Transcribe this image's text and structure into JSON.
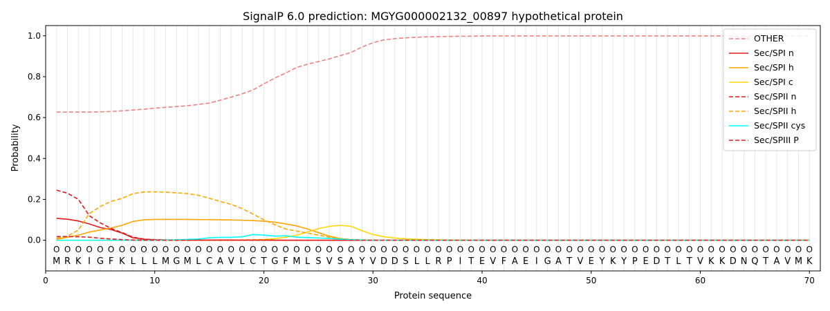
{
  "chart_data": {
    "type": "line",
    "title": "SignalP 6.0 prediction: MGYG000002132_00897 hypothetical protein",
    "xlabel": "Protein sequence",
    "ylabel": "Probability",
    "xlim": [
      0,
      71
    ],
    "ylim": [
      -0.15,
      1.05
    ],
    "x_ticks": [
      0,
      10,
      20,
      30,
      40,
      50,
      60,
      70
    ],
    "y_ticks": [
      0.0,
      0.2,
      0.4,
      0.6,
      0.8,
      1.0
    ],
    "x_tick_labels": [
      "0",
      "10",
      "20",
      "30",
      "40",
      "50",
      "60",
      "70"
    ],
    "y_tick_labels": [
      "0.0",
      "0.2",
      "0.4",
      "0.6",
      "0.8",
      "1.0"
    ],
    "grid": "vertical lines at each residue",
    "legend_position": "top-right",
    "sequence": [
      "M",
      "R",
      "K",
      "I",
      "G",
      "F",
      "K",
      "L",
      "L",
      "L",
      "M",
      "G",
      "M",
      "L",
      "C",
      "A",
      "V",
      "L",
      "C",
      "T",
      "G",
      "F",
      "M",
      "L",
      "S",
      "V",
      "S",
      "A",
      "Y",
      "V",
      "D",
      "D",
      "S",
      "L",
      "L",
      "R",
      "P",
      "I",
      "T",
      "E",
      "V",
      "F",
      "A",
      "E",
      "I",
      "G",
      "A",
      "T",
      "V",
      "E",
      "Y",
      "K",
      "Y",
      "P",
      "E",
      "D",
      "T",
      "L",
      "T",
      "V",
      "K",
      "K",
      "D",
      "N",
      "Q",
      "T",
      "A",
      "V",
      "M",
      "K"
    ],
    "region_marker_label": "O",
    "series": [
      {
        "name": "OTHER",
        "color": "#f08080",
        "dash": "dashed",
        "values": [
          0.627,
          0.627,
          0.627,
          0.627,
          0.628,
          0.63,
          0.633,
          0.637,
          0.641,
          0.646,
          0.65,
          0.654,
          0.658,
          0.664,
          0.671,
          0.685,
          0.7,
          0.716,
          0.735,
          0.765,
          0.793,
          0.818,
          0.845,
          0.861,
          0.874,
          0.887,
          0.903,
          0.919,
          0.945,
          0.966,
          0.98,
          0.986,
          0.99,
          0.993,
          0.995,
          0.996,
          0.997,
          0.998,
          0.998,
          0.999,
          0.999,
          0.999,
          0.999,
          0.999,
          0.999,
          0.999,
          0.999,
          0.999,
          0.999,
          0.999,
          0.999,
          0.999,
          0.999,
          0.999,
          0.999,
          0.999,
          0.999,
          0.999,
          0.999,
          0.999,
          0.999,
          0.999,
          0.999,
          0.999,
          0.999,
          0.999,
          0.999,
          0.999,
          0.999,
          0.999
        ]
      },
      {
        "name": "Sec/SPI n",
        "color": "#e31a1c",
        "dash": "solid",
        "values": [
          0.107,
          0.103,
          0.094,
          0.08,
          0.062,
          0.052,
          0.035,
          0.012,
          0.005,
          0.002,
          0.001,
          0.001,
          0.001,
          0.001,
          0.001,
          0.001,
          0.001,
          0.001,
          0.001,
          0.001,
          0,
          0,
          0,
          0,
          0,
          0,
          0,
          0,
          0,
          0,
          0,
          0,
          0,
          0,
          0,
          0,
          0,
          0,
          0,
          0,
          0,
          0,
          0,
          0,
          0,
          0,
          0,
          0,
          0,
          0,
          0,
          0,
          0,
          0,
          0,
          0,
          0,
          0,
          0,
          0,
          0,
          0,
          0,
          0,
          0,
          0,
          0,
          0,
          0,
          0
        ]
      },
      {
        "name": "Sec/SPI h",
        "color": "#ffa500",
        "dash": "solid",
        "values": [
          0.005,
          0.015,
          0.025,
          0.04,
          0.05,
          0.06,
          0.073,
          0.092,
          0.1,
          0.102,
          0.102,
          0.102,
          0.102,
          0.101,
          0.101,
          0.1,
          0.099,
          0.098,
          0.096,
          0.093,
          0.088,
          0.08,
          0.07,
          0.055,
          0.037,
          0.02,
          0.008,
          0.003,
          0.001,
          0.001,
          0,
          0,
          0,
          0,
          0,
          0,
          0,
          0,
          0,
          0,
          0,
          0,
          0,
          0,
          0,
          0,
          0,
          0,
          0,
          0,
          0,
          0,
          0,
          0,
          0,
          0,
          0,
          0,
          0,
          0,
          0,
          0,
          0,
          0,
          0,
          0,
          0,
          0,
          0,
          0
        ]
      },
      {
        "name": "Sec/SPI c",
        "color": "#ffd700",
        "dash": "solid",
        "values": [
          0,
          0,
          0,
          0,
          0,
          0,
          0,
          0,
          0,
          0,
          0,
          0,
          0,
          0,
          0,
          0,
          0,
          0.001,
          0.002,
          0.004,
          0.008,
          0.015,
          0.025,
          0.04,
          0.057,
          0.068,
          0.073,
          0.068,
          0.046,
          0.028,
          0.017,
          0.011,
          0.007,
          0.005,
          0.003,
          0.002,
          0.001,
          0.001,
          0,
          0,
          0,
          0,
          0,
          0,
          0,
          0,
          0,
          0,
          0,
          0,
          0,
          0,
          0,
          0,
          0,
          0,
          0,
          0,
          0,
          0,
          0,
          0,
          0,
          0,
          0,
          0,
          0,
          0,
          0,
          0
        ]
      },
      {
        "name": "Sec/SPII n",
        "color": "#e31a1c",
        "dash": "dashed",
        "values": [
          0.245,
          0.23,
          0.2,
          0.12,
          0.085,
          0.058,
          0.038,
          0.015,
          0.006,
          0.003,
          0.002,
          0.001,
          0.001,
          0.001,
          0.001,
          0.001,
          0.001,
          0.001,
          0.001,
          0.001,
          0.001,
          0,
          0,
          0,
          0,
          0,
          0,
          0,
          0,
          0,
          0,
          0,
          0,
          0,
          0,
          0,
          0,
          0,
          0,
          0,
          0,
          0,
          0,
          0,
          0,
          0,
          0,
          0,
          0,
          0,
          0,
          0,
          0,
          0,
          0,
          0,
          0,
          0,
          0,
          0,
          0,
          0,
          0,
          0,
          0,
          0,
          0,
          0,
          0,
          0
        ]
      },
      {
        "name": "Sec/SPII h",
        "color": "#ffa500",
        "dash": "dashed",
        "values": [
          0.01,
          0.02,
          0.05,
          0.13,
          0.165,
          0.19,
          0.205,
          0.228,
          0.236,
          0.237,
          0.235,
          0.232,
          0.228,
          0.22,
          0.205,
          0.19,
          0.175,
          0.155,
          0.128,
          0.1,
          0.076,
          0.055,
          0.045,
          0.035,
          0.025,
          0.015,
          0.008,
          0.004,
          0.002,
          0.001,
          0,
          0,
          0,
          0,
          0,
          0,
          0,
          0,
          0,
          0,
          0,
          0,
          0,
          0,
          0,
          0,
          0,
          0,
          0,
          0,
          0,
          0,
          0,
          0,
          0,
          0,
          0,
          0,
          0,
          0,
          0,
          0,
          0,
          0,
          0,
          0,
          0,
          0,
          0,
          0
        ]
      },
      {
        "name": "Sec/SPII cys",
        "color": "#00ffff",
        "dash": "solid",
        "values": [
          0,
          0,
          0,
          0,
          0,
          0,
          0,
          0,
          0,
          0,
          0.001,
          0.002,
          0.004,
          0.006,
          0.012,
          0.014,
          0.014,
          0.017,
          0.028,
          0.025,
          0.02,
          0.022,
          0.015,
          0.013,
          0.011,
          0.009,
          0.005,
          0.003,
          0.001,
          0,
          0,
          0,
          0,
          0,
          0,
          0,
          0,
          0,
          0,
          0,
          0,
          0,
          0,
          0,
          0,
          0,
          0,
          0,
          0,
          0,
          0,
          0,
          0,
          0,
          0,
          0,
          0,
          0,
          0,
          0,
          0,
          0,
          0,
          0,
          0,
          0,
          0,
          0,
          0,
          0
        ]
      },
      {
        "name": "Sec/SPIII P",
        "color": "#e31a1c",
        "dash": "dashed",
        "values": [
          0.018,
          0.018,
          0.017,
          0.015,
          0.01,
          0.006,
          0.003,
          0.001,
          0,
          0,
          0,
          0,
          0,
          0,
          0,
          0,
          0,
          0,
          0,
          0,
          0,
          0,
          0,
          0,
          0,
          0,
          0,
          0,
          0,
          0,
          0,
          0,
          0,
          0,
          0,
          0,
          0,
          0,
          0,
          0,
          0,
          0,
          0,
          0,
          0,
          0,
          0,
          0,
          0,
          0,
          0,
          0,
          0,
          0,
          0,
          0,
          0,
          0,
          0,
          0,
          0,
          0,
          0,
          0,
          0,
          0,
          0,
          0,
          0,
          0
        ]
      }
    ]
  }
}
